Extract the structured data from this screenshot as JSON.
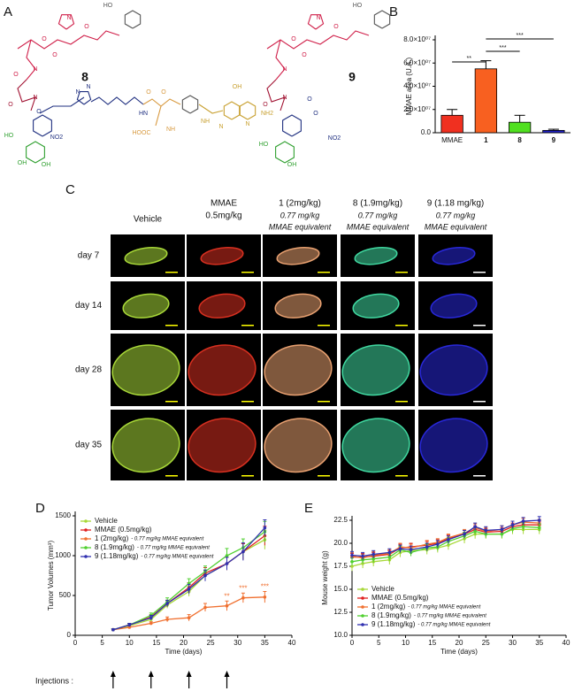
{
  "panel_labels": [
    "A",
    "B",
    "C",
    "D",
    "E"
  ],
  "structures": [
    {
      "label": "8",
      "atoms": [
        "HO",
        "O",
        "N",
        "O",
        "O",
        "N",
        "O",
        "O",
        "N",
        "NO2",
        "OH",
        "OH",
        "HO",
        "O",
        "N",
        "N",
        "HN",
        "O",
        "HOOC",
        "NH",
        "O",
        "NH",
        "N",
        "N",
        "OH",
        "NH2"
      ]
    },
    {
      "label": "9",
      "atoms": [
        "HO",
        "O",
        "N",
        "O",
        "O",
        "N",
        "O",
        "N",
        "O",
        "NO2",
        "OH",
        "HO",
        "O"
      ]
    }
  ],
  "imaging": {
    "columns": [
      {
        "title": "Vehicle",
        "color": "#a8d838"
      },
      {
        "title": "MMAE",
        "dose": "0.5mg/kg",
        "color": "#d83020"
      },
      {
        "title": "1 (2mg/kg)",
        "note": [
          "0.77 mg/kg",
          "MMAE equivalent"
        ],
        "color": "#e8a070"
      },
      {
        "title": "8 (1.9mg/kg)",
        "note": [
          "0.77 mg/kg",
          "MMAE equivalent"
        ],
        "color": "#40d8a0"
      },
      {
        "title": "9 (1.18 mg/kg)",
        "note": [
          "0.77 mg/kg",
          "MMAE equivalent"
        ],
        "color": "#2828d8"
      }
    ],
    "rows": [
      "day 7",
      "day 14",
      "day 28",
      "day 35"
    ]
  },
  "chart_data": [
    {
      "type": "bar",
      "ylabel": "MMAE area (U.A.)",
      "categories": [
        "MMAE",
        "1",
        "8",
        "9"
      ],
      "values": [
        15000000,
        55000000,
        9000000,
        2000000
      ],
      "errors": [
        5000000,
        7000000,
        6000000,
        1000000
      ],
      "colors": [
        "#f03020",
        "#f86020",
        "#50e020",
        "#2020c0"
      ],
      "ylim": [
        0,
        80000000
      ],
      "yticks": [
        {
          "value": 0,
          "label": "0.0"
        },
        {
          "value": 20000000,
          "label": "2.0×10⁰⁷"
        },
        {
          "value": 40000000,
          "label": "4.0×10⁰⁷"
        },
        {
          "value": 60000000,
          "label": "6.0×10⁰⁷"
        },
        {
          "value": 80000000,
          "label": "8.0×10⁰⁷"
        }
      ],
      "annotations": [
        "**",
        "***",
        "***"
      ]
    },
    {
      "type": "line",
      "xlabel": "Time (days)",
      "ylabel": "Tumor Volumes (mm³)",
      "x": [
        7,
        10,
        14,
        17,
        21,
        24,
        28,
        31,
        35
      ],
      "series": [
        {
          "name": "Vehicle",
          "color": "#a8d838",
          "values": [
            70,
            120,
            200,
            380,
            550,
            750,
            900,
            1050,
            1200
          ],
          "errors": [
            10,
            20,
            30,
            40,
            60,
            60,
            80,
            100,
            120
          ]
        },
        {
          "name": "MMAE (0.5mg/kg)",
          "color": "#e02020",
          "values": [
            70,
            130,
            230,
            400,
            600,
            780,
            900,
            1050,
            1250
          ],
          "errors": [
            10,
            20,
            30,
            40,
            60,
            70,
            80,
            100,
            120
          ]
        },
        {
          "name": "1 (2mg/kg)",
          "note": "- 0.77 mg/kg MMAE equivalent",
          "color": "#f07030",
          "values": [
            70,
            100,
            150,
            200,
            220,
            350,
            370,
            470,
            480
          ],
          "errors": [
            10,
            15,
            20,
            30,
            40,
            50,
            60,
            60,
            70
          ]
        },
        {
          "name": "8 (1.9mg/kg)",
          "note": "- 0.77 mg/kg MMAE equivalent",
          "color": "#50d030",
          "values": [
            70,
            130,
            250,
            420,
            650,
            800,
            1000,
            1100,
            1300
          ],
          "errors": [
            10,
            20,
            30,
            50,
            60,
            70,
            90,
            110,
            130
          ]
        },
        {
          "name": "9 (1.18mg/kg)",
          "note": "- 0.77 mg/kg MMAE equivalent",
          "color": "#3030b0",
          "values": [
            70,
            130,
            220,
            400,
            580,
            750,
            900,
            1050,
            1350
          ],
          "errors": [
            10,
            20,
            30,
            40,
            60,
            70,
            80,
            110,
            100
          ]
        }
      ],
      "xlim": [
        0,
        40
      ],
      "xticks": [
        0,
        5,
        10,
        15,
        20,
        25,
        30,
        35,
        40
      ],
      "ylim": [
        0,
        1500
      ],
      "yticks": [
        0,
        500,
        1000,
        1500
      ],
      "annotations": [
        "**",
        "***",
        "***"
      ],
      "injections_label": "Injections :",
      "injection_days": [
        7,
        14,
        21,
        28
      ]
    },
    {
      "type": "line",
      "xlabel": "Time (days)",
      "ylabel": "Mouse weight (g)",
      "x": [
        0,
        2,
        4,
        7,
        9,
        11,
        14,
        16,
        18,
        21,
        23,
        25,
        28,
        30,
        32,
        35
      ],
      "series": [
        {
          "name": "Vehicle",
          "color": "#a8d838",
          "values": [
            17.5,
            17.8,
            18.0,
            18.2,
            19.0,
            19.2,
            19.3,
            19.5,
            19.8,
            20.5,
            21.0,
            21.0,
            21.0,
            21.5,
            21.5,
            21.5
          ],
          "errors": [
            0.5,
            0.5,
            0.5,
            0.5,
            0.5,
            0.5,
            0.5,
            0.5,
            0.5,
            0.5,
            0.5,
            0.5,
            0.5,
            0.5,
            0.5,
            0.5
          ]
        },
        {
          "name": "MMAE (0.5mg/kg)",
          "color": "#e02020",
          "values": [
            18.5,
            18.5,
            18.6,
            18.8,
            19.5,
            19.6,
            19.8,
            20.0,
            20.5,
            21.0,
            21.5,
            21.2,
            21.3,
            21.8,
            22.0,
            22.0
          ],
          "errors": [
            0.4,
            0.4,
            0.4,
            0.4,
            0.4,
            0.4,
            0.4,
            0.4,
            0.4,
            0.4,
            0.4,
            0.4,
            0.4,
            0.4,
            0.4,
            0.4
          ]
        },
        {
          "name": "1 (2mg/kg)",
          "note": "- 0.77 mg/kg MMAE equivalent",
          "color": "#f07030",
          "values": [
            18.6,
            18.4,
            18.7,
            18.9,
            19.6,
            19.5,
            19.9,
            20.1,
            20.6,
            21.1,
            21.7,
            21.3,
            21.5,
            22.0,
            22.3,
            22.2
          ],
          "errors": [
            0.4,
            0.4,
            0.4,
            0.4,
            0.4,
            0.4,
            0.4,
            0.4,
            0.4,
            0.4,
            0.4,
            0.4,
            0.4,
            0.4,
            0.4,
            0.4
          ]
        },
        {
          "name": "8 (1.9mg/kg)",
          "note": "- 0.77 mg/kg MMAE equivalent",
          "color": "#50d030",
          "values": [
            18.0,
            18.2,
            18.3,
            18.5,
            19.3,
            19.0,
            19.5,
            19.6,
            20.2,
            20.8,
            21.3,
            21.0,
            21.0,
            21.6,
            21.8,
            21.7
          ],
          "errors": [
            0.4,
            0.4,
            0.4,
            0.4,
            0.4,
            0.4,
            0.4,
            0.4,
            0.4,
            0.4,
            0.4,
            0.4,
            0.4,
            0.4,
            0.4,
            0.4
          ]
        },
        {
          "name": "9 (1.18mg/kg)",
          "note": "- 0.77 mg/kg MMAE equivalent",
          "color": "#3030b0",
          "values": [
            18.7,
            18.6,
            18.8,
            19.0,
            19.4,
            19.3,
            19.6,
            19.9,
            20.4,
            21.0,
            21.8,
            21.4,
            21.5,
            22.0,
            22.4,
            22.5
          ],
          "errors": [
            0.4,
            0.4,
            0.4,
            0.4,
            0.4,
            0.4,
            0.4,
            0.4,
            0.4,
            0.4,
            0.4,
            0.4,
            0.4,
            0.4,
            0.4,
            0.4
          ]
        }
      ],
      "xlim": [
        0,
        40
      ],
      "xticks": [
        0,
        5,
        10,
        15,
        20,
        25,
        30,
        35,
        40
      ],
      "ylim": [
        10,
        22.5
      ],
      "yticks": [
        {
          "value": 10,
          "label": "10.0"
        },
        12.5,
        {
          "value": 15,
          "label": "15.0"
        },
        17.5,
        {
          "value": 20,
          "label": "20.0"
        },
        22.5
      ]
    }
  ]
}
